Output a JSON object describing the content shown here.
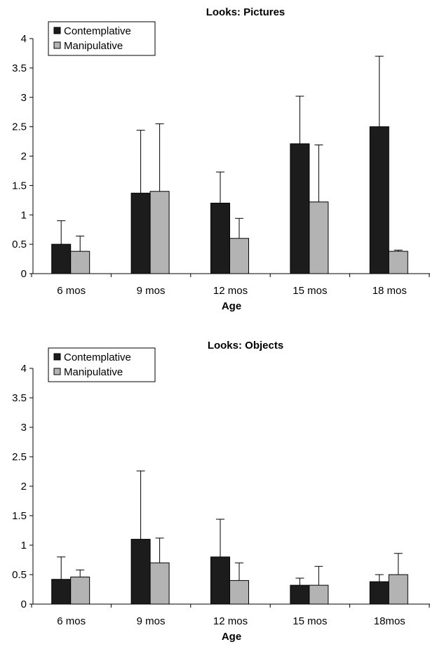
{
  "chart_data": [
    {
      "type": "bar",
      "title": "Looks: Pictures",
      "xlabel": "Age",
      "ylabel": "",
      "ylim": [
        0,
        4
      ],
      "yticks": [
        "0",
        "0.5",
        "1",
        "1.5",
        "2",
        "2.5",
        "3",
        "3.5",
        "4"
      ],
      "categories": [
        "6 mos",
        "9 mos",
        "12 mos",
        "15 mos",
        "18 mos"
      ],
      "grid": false,
      "legend_position": "top-left",
      "series": [
        {
          "name": "Contemplative",
          "color": "#1c1c1c",
          "values": [
            0.5,
            1.37,
            1.2,
            2.21,
            2.5
          ],
          "error": [
            0.4,
            1.07,
            0.53,
            0.81,
            1.2
          ]
        },
        {
          "name": "Manipulative",
          "color": "#b3b3b3",
          "values": [
            0.38,
            1.4,
            0.6,
            1.22,
            0.38
          ],
          "error": [
            0.26,
            1.15,
            0.34,
            0.97,
            0.02
          ]
        }
      ]
    },
    {
      "type": "bar",
      "title": "Looks: Objects",
      "xlabel": "Age",
      "ylabel": "",
      "ylim": [
        0,
        4
      ],
      "yticks": [
        "0",
        "0.5",
        "1",
        "1.5",
        "2",
        "2.5",
        "3",
        "3.5",
        "4"
      ],
      "categories": [
        "6 mos",
        "9 mos",
        "12 mos",
        "15 mos",
        "18mos"
      ],
      "grid": false,
      "legend_position": "top-left",
      "series": [
        {
          "name": "Contemplative",
          "color": "#1c1c1c",
          "values": [
            0.42,
            1.1,
            0.8,
            0.32,
            0.38
          ],
          "error": [
            0.38,
            1.16,
            0.64,
            0.12,
            0.12
          ]
        },
        {
          "name": "Manipulative",
          "color": "#b3b3b3",
          "values": [
            0.46,
            0.7,
            0.4,
            0.32,
            0.5
          ],
          "error": [
            0.12,
            0.42,
            0.3,
            0.32,
            0.36
          ]
        }
      ]
    }
  ]
}
